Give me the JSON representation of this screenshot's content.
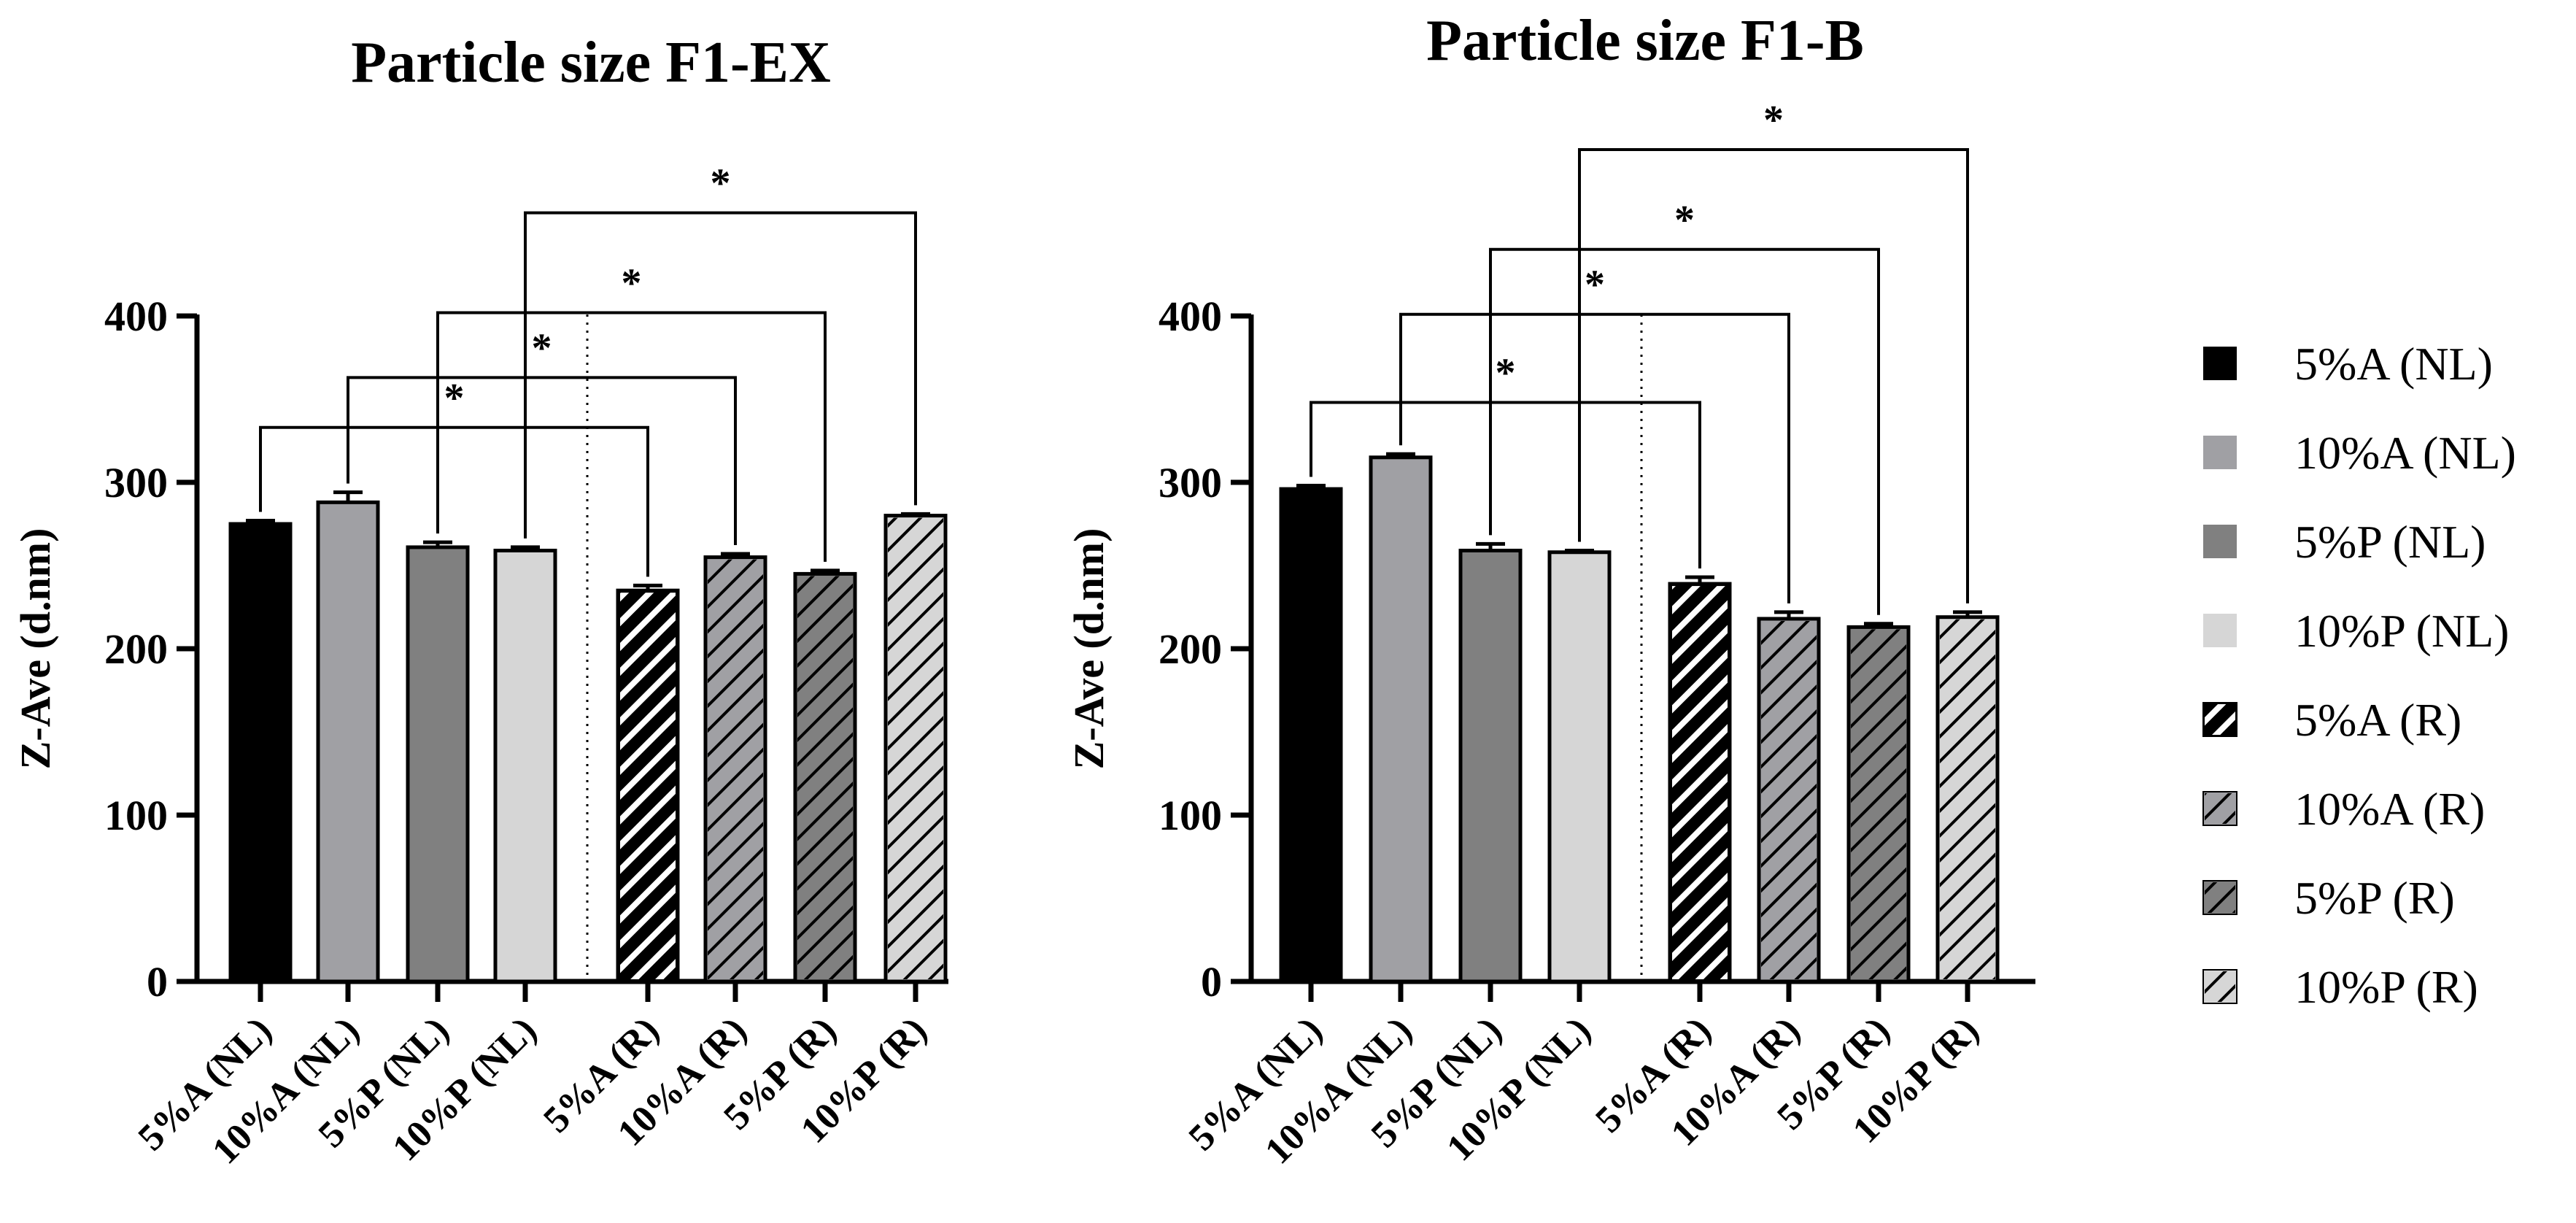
{
  "chart_data": [
    {
      "type": "bar",
      "title": "Particle size F1-EX",
      "ylabel": "Z-Ave (d.nm)",
      "xlabel": "",
      "ylim": [
        0,
        400
      ],
      "yticks": [
        "0",
        "100",
        "200",
        "300",
        "400"
      ],
      "categories": [
        "5%A (NL)",
        "10%A (NL)",
        "5%P (NL)",
        "10%P (NL)",
        "5%A (R)",
        "10%A (R)",
        "5%P (R)",
        "10%P (R)"
      ],
      "values": [
        275,
        288,
        261,
        259,
        235,
        255,
        245,
        280
      ],
      "errors": [
        2,
        6,
        3,
        2,
        3,
        2,
        2,
        1
      ],
      "significance": [
        {
          "from": 0,
          "to": 4,
          "label": "*",
          "level": 333
        },
        {
          "from": 1,
          "to": 5,
          "label": "*",
          "level": 363
        },
        {
          "from": 2,
          "to": 6,
          "label": "*",
          "level": 402
        },
        {
          "from": 3,
          "to": 7,
          "label": "*",
          "level": 462
        }
      ]
    },
    {
      "type": "bar",
      "title": "Particle size F1-B",
      "ylabel": "Z-Ave (d.nm)",
      "xlabel": "",
      "ylim": [
        0,
        400
      ],
      "yticks": [
        "0",
        "100",
        "200",
        "300",
        "400"
      ],
      "categories": [
        "5%A (NL)",
        "10%A (NL)",
        "5%P (NL)",
        "10%P (NL)",
        "5%A (R)",
        "10%A (R)",
        "5%P (R)",
        "10%P (R)"
      ],
      "values": [
        296,
        315,
        259,
        258,
        239,
        218,
        213,
        219
      ],
      "errors": [
        2,
        2,
        4,
        1,
        4,
        4,
        2,
        3
      ],
      "significance": [
        {
          "from": 0,
          "to": 4,
          "label": "*",
          "level": 348
        },
        {
          "from": 1,
          "to": 5,
          "label": "*",
          "level": 401
        },
        {
          "from": 2,
          "to": 6,
          "label": "*",
          "level": 440
        },
        {
          "from": 3,
          "to": 7,
          "label": "*",
          "level": 500
        }
      ]
    }
  ],
  "legend": {
    "placement": "right",
    "items": [
      {
        "label": "5%A (NL)",
        "color": "#000000",
        "pattern": "solid"
      },
      {
        "label": "10%A (NL)",
        "color": "#a0a0a4",
        "pattern": "solid"
      },
      {
        "label": "5%P (NL)",
        "color": "#808080",
        "pattern": "solid"
      },
      {
        "label": "10%P (NL)",
        "color": "#d6d6d6",
        "pattern": "solid"
      },
      {
        "label": "5%A (R)",
        "color": "#000000",
        "pattern": "hatched"
      },
      {
        "label": "10%A (R)",
        "color": "#a0a0a4",
        "pattern": "hatched"
      },
      {
        "label": "5%P (R)",
        "color": "#808080",
        "pattern": "hatched"
      },
      {
        "label": "10%P (R)",
        "color": "#d6d6d6",
        "pattern": "hatched"
      }
    ]
  }
}
